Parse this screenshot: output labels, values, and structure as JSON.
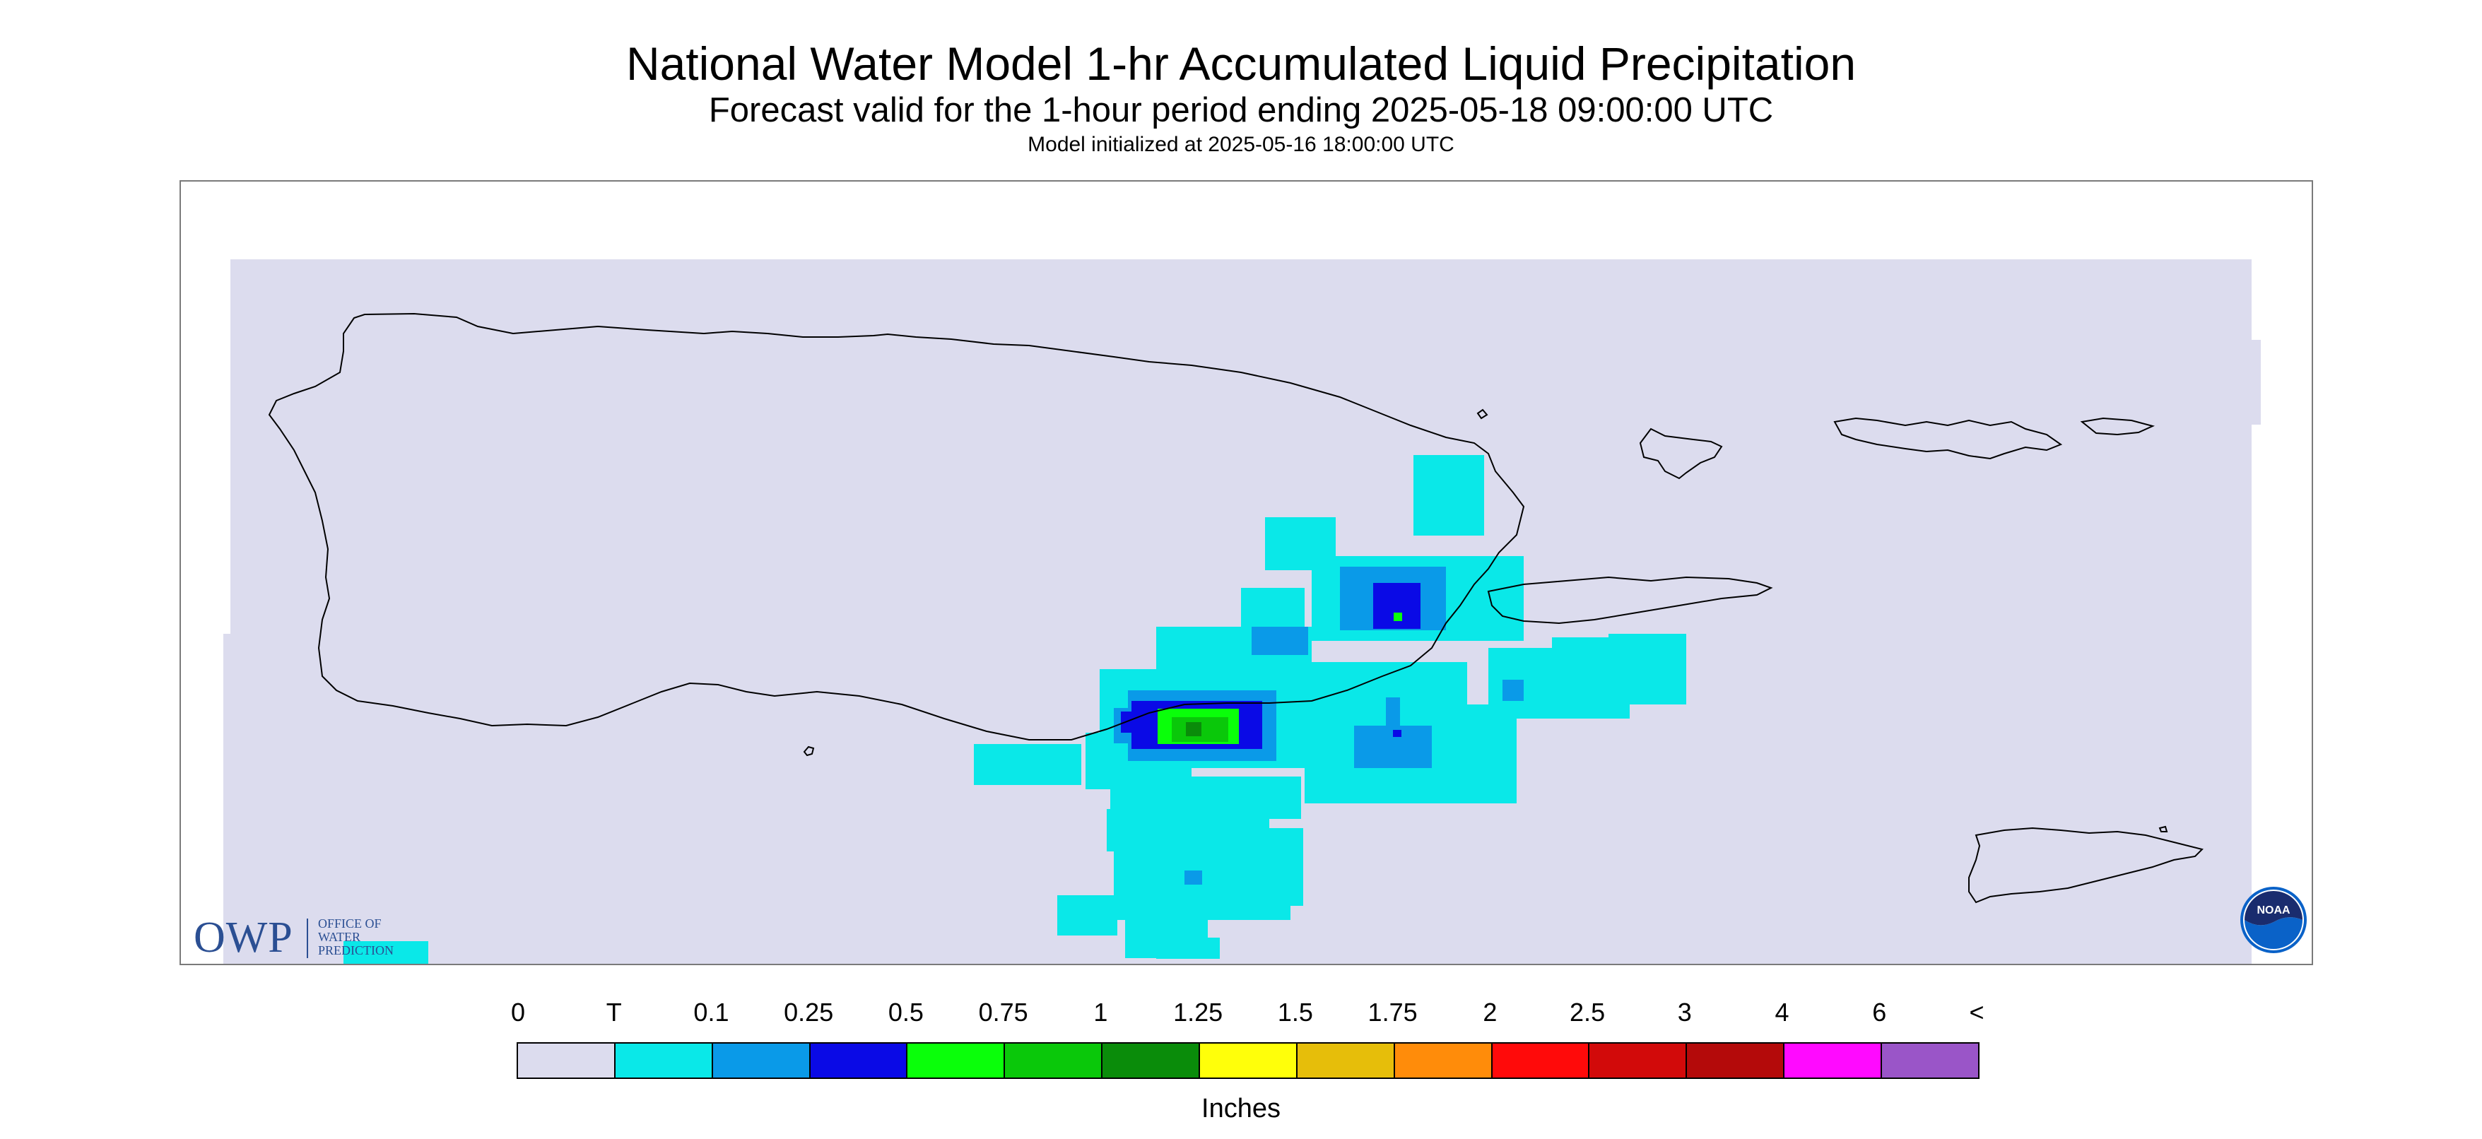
{
  "header": {
    "title": "National Water Model 1-hr Accumulated Liquid Precipitation",
    "subtitle": "Forecast valid for the 1-hour period ending 2025-05-18 09:00:00 UTC",
    "init": "Model initialized at 2025-05-16 18:00:00 UTC"
  },
  "logo_owp": {
    "abbrev": "OWP",
    "name": "OFFICE OF WATER PREDICTION"
  },
  "logo_noaa": {
    "text": "NOAA"
  },
  "legend": {
    "labels": [
      "0",
      "T",
      "0.1",
      "0.25",
      "0.5",
      "0.75",
      "1",
      "1.25",
      "1.5",
      "1.75",
      "2",
      "2.5",
      "3",
      "4",
      "6",
      "<"
    ],
    "colors": [
      "#dcdcee",
      "#0ae8e8",
      "#0a9ae8",
      "#0a0ae6",
      "#0aff0a",
      "#0ac80a",
      "#0a8c0a",
      "#ffff0a",
      "#e6be0a",
      "#ff8c0a",
      "#ff0a0a",
      "#d20a0a",
      "#b40a0a",
      "#ff0aff",
      "#9a55c8"
    ],
    "units": "Inches"
  },
  "map_style": {
    "background": "#dcdcee",
    "coastline": "#000000"
  }
}
